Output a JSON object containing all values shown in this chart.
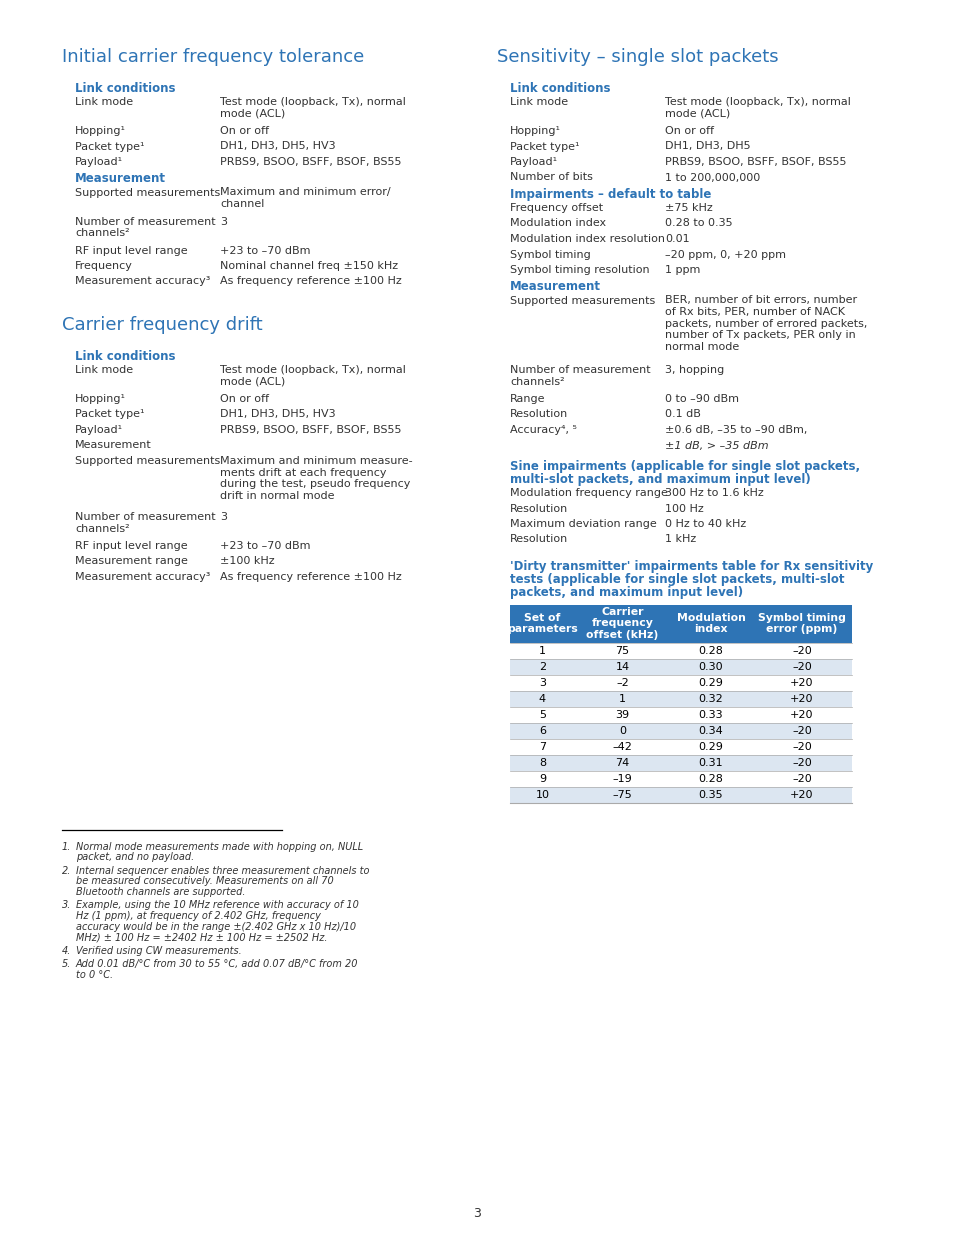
{
  "bg_color": "#ffffff",
  "blue": "#2E74B5",
  "black": "#333333",
  "page_number": "3",
  "s1_title": "Initial carrier frequency tolerance",
  "s1_lc_heading": "Link conditions",
  "s1_lc_rows": [
    [
      "Link mode",
      "Test mode (loopback, Tx), normal\nmode (ACL)"
    ],
    [
      "Hopping¹",
      "On or off"
    ],
    [
      "Packet type¹",
      "DH1, DH3, DH5, HV3"
    ],
    [
      "Payload¹",
      "PRBS9, BSOO, BSFF, BSOF, BS55"
    ]
  ],
  "s1_m_heading": "Measurement",
  "s1_m_rows": [
    [
      "Supported measurements",
      "Maximum and minimum error/\nchannel"
    ],
    [
      "Number of measurement\nchannels²",
      "3"
    ],
    [
      "RF input level range",
      "+23 to –70 dBm"
    ],
    [
      "Frequency",
      "Nominal channel freq ±150 kHz"
    ],
    [
      "Measurement accuracy³",
      "As frequency reference ±100 Hz"
    ]
  ],
  "s2_title": "Carrier frequency drift",
  "s2_lc_heading": "Link conditions",
  "s2_lc_rows": [
    [
      "Link mode",
      "Test mode (loopback, Tx), normal\nmode (ACL)"
    ],
    [
      "Hopping¹",
      "On or off"
    ],
    [
      "Packet type¹",
      "DH1, DH3, DH5, HV3"
    ],
    [
      "Payload¹",
      "PRBS9, BSOO, BSFF, BSOF, BS55"
    ]
  ],
  "s2_plain_measurement": "Measurement",
  "s2_m_rows": [
    [
      "Supported measurements",
      "Maximum and minimum measure-\nments drift at each frequency\nduring the test, pseudo frequency\ndrift in normal mode"
    ],
    [
      "Number of measurement\nchannels²",
      "3"
    ],
    [
      "RF input level range",
      "+23 to –70 dBm"
    ],
    [
      "Measurement range",
      "±100 kHz"
    ],
    [
      "Measurement accuracy³",
      "As frequency reference ±100 Hz"
    ]
  ],
  "s3_title": "Sensitivity – single slot packets",
  "s3_lc_heading": "Link conditions",
  "s3_lc_rows": [
    [
      "Link mode",
      "Test mode (loopback, Tx), normal\nmode (ACL)"
    ],
    [
      "Hopping¹",
      "On or off"
    ],
    [
      "Packet type¹",
      "DH1, DH3, DH5"
    ],
    [
      "Payload¹",
      "PRBS9, BSOO, BSFF, BSOF, BS55"
    ],
    [
      "Number of bits",
      "1 to 200,000,000"
    ]
  ],
  "s3_imp_heading": "Impairments – default to table",
  "s3_imp_rows": [
    [
      "Frequency offset",
      "±75 kHz"
    ],
    [
      "Modulation index",
      "0.28 to 0.35"
    ],
    [
      "Modulation index resolution",
      "0.01"
    ],
    [
      "Symbol timing",
      "–20 ppm, 0, +20 ppm"
    ],
    [
      "Symbol timing resolution",
      "1 ppm"
    ]
  ],
  "s3_meas_heading": "Measurement",
  "s3_meas_rows": [
    [
      "Supported measurements",
      "BER, number of bit errors, number\nof Rx bits, PER, number of NACK\npackets, number of errored packets,\nnumber of Tx packets, PER only in\nnormal mode"
    ],
    [
      "Number of measurement\nchannels²",
      "3, hopping"
    ],
    [
      "Range",
      "0 to –90 dBm"
    ],
    [
      "Resolution",
      "0.1 dB"
    ],
    [
      "Accuracy⁴, ⁵",
      "±0.6 dB, –35 to –90 dBm,"
    ]
  ],
  "accuracy_italic": "±1 dB, > –35 dBm",
  "s3_sine_heading1": "Sine impairments (applicable for single slot packets,",
  "s3_sine_heading2": "multi-slot packets, and maximum input level)",
  "s3_sine_rows": [
    [
      "Modulation frequency range",
      "300 Hz to 1.6 kHz"
    ],
    [
      "Resolution",
      "100 Hz"
    ],
    [
      "Maximum deviation range",
      "0 Hz to 40 kHz"
    ],
    [
      "Resolution",
      "1 kHz"
    ]
  ],
  "s3_dirty_heading1": "'Dirty transmitter' impairments table for Rx sensitivity",
  "s3_dirty_heading2": "tests (applicable for single slot packets, multi-slot",
  "s3_dirty_heading3": "packets, and maximum input level)",
  "table_col_headers": [
    "Set of\nparameters",
    "Carrier\nfrequency\noffset (kHz)",
    "Modulation\nindex",
    "Symbol timing\nerror (ppm)"
  ],
  "table_rows": [
    [
      "1",
      "75",
      "0.28",
      "–20"
    ],
    [
      "2",
      "14",
      "0.30",
      "–20"
    ],
    [
      "3",
      "–2",
      "0.29",
      "+20"
    ],
    [
      "4",
      "1",
      "0.32",
      "+20"
    ],
    [
      "5",
      "39",
      "0.33",
      "+20"
    ],
    [
      "6",
      "0",
      "0.34",
      "–20"
    ],
    [
      "7",
      "–42",
      "0.29",
      "–20"
    ],
    [
      "8",
      "74",
      "0.31",
      "–20"
    ],
    [
      "9",
      "–19",
      "0.28",
      "–20"
    ],
    [
      "10",
      "–75",
      "0.35",
      "+20"
    ]
  ],
  "table_hdr_bg": "#2E74B5",
  "table_hdr_fg": "#ffffff",
  "table_even_bg": "#dce6f1",
  "table_odd_bg": "#ffffff",
  "table_line_color": "#aaaaaa",
  "footnotes": [
    [
      "1.",
      "Normal mode measurements made with hopping on, NULL packet, and no payload."
    ],
    [
      "2.",
      "Internal sequencer enables three measurement channels to be measured consecutively. Measurements on all 70 Bluetooth channels are supported."
    ],
    [
      "3.",
      "Example, using the 10 MHz reference with accuracy of 10 Hz (1 ppm), at frequency of 2.402 GHz, frequency accuracy would be in the range ±(2.402 GHz x 10 Hz)/10 MHz) ± 100 Hz = ±2402 Hz ± 100 Hz = ±2502 Hz."
    ],
    [
      "4.",
      "Verified using CW measurements."
    ],
    [
      "5.",
      "Add 0.01 dB/°C from 30 to 55 °C, add 0.07 dB/°C from 20 to 0 °C."
    ]
  ]
}
